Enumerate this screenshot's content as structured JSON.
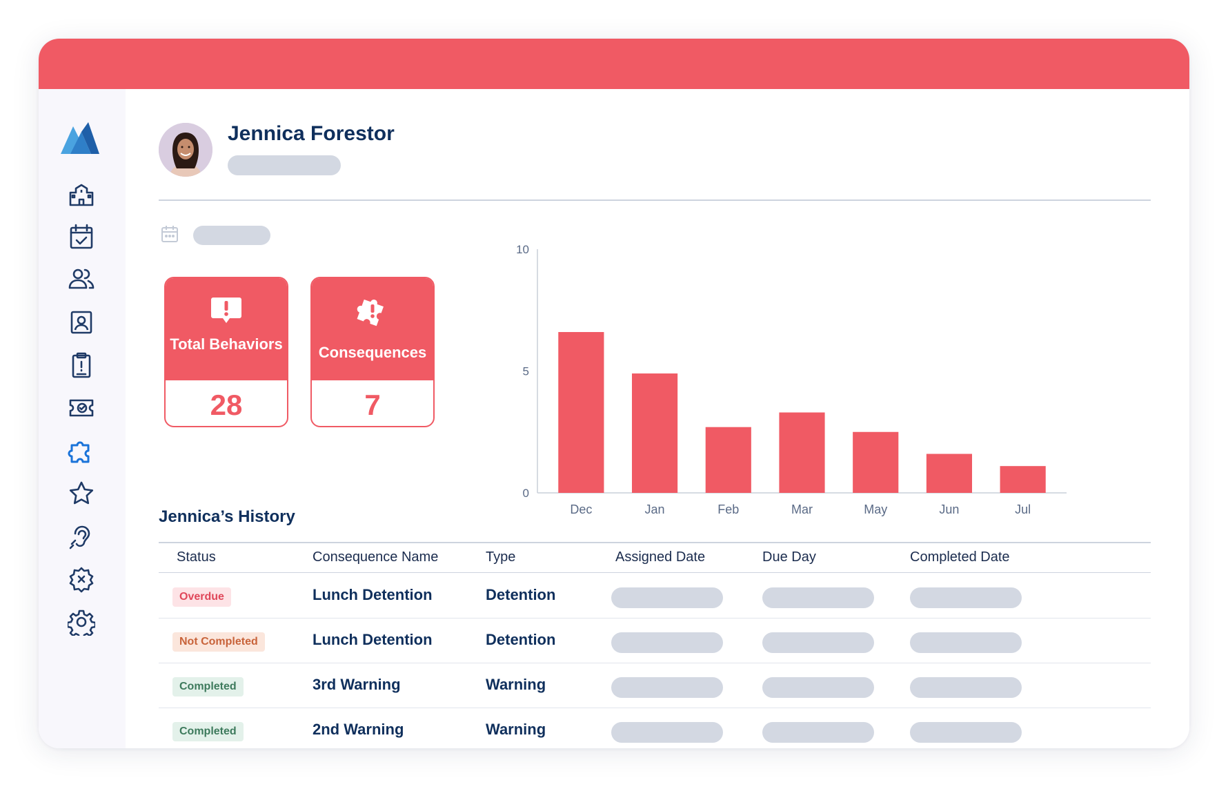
{
  "student": {
    "name": "Jennica Forestor"
  },
  "cards": [
    {
      "label": "Total Behaviors",
      "value": "28",
      "icon": "alert-bubble-icon"
    },
    {
      "label": "Consequences",
      "value": "7",
      "icon": "puzzle-alert-icon"
    }
  ],
  "nav": [
    {
      "name": "school",
      "icon": "school-icon"
    },
    {
      "name": "calendar",
      "icon": "calendar-check-icon"
    },
    {
      "name": "students",
      "icon": "users-icon"
    },
    {
      "name": "profile",
      "icon": "contact-card-icon"
    },
    {
      "name": "clipboard",
      "icon": "clipboard-icon"
    },
    {
      "name": "tickets",
      "icon": "ticket-check-icon"
    },
    {
      "name": "consequences",
      "icon": "puzzle-icon",
      "active": true
    },
    {
      "name": "rewards",
      "icon": "star-icon"
    },
    {
      "name": "listening",
      "icon": "ear-icon"
    },
    {
      "name": "interventions",
      "icon": "badge-spark-icon"
    },
    {
      "name": "settings",
      "icon": "gear-icon"
    }
  ],
  "chart_data": {
    "type": "bar",
    "categories": [
      "Dec",
      "Jan",
      "Feb",
      "Mar",
      "May",
      "Jun",
      "Jul"
    ],
    "values": [
      6.6,
      4.9,
      2.7,
      3.3,
      2.5,
      1.6,
      1.1
    ],
    "ylim": [
      0,
      10
    ],
    "yticks": [
      0,
      5,
      10
    ],
    "color": "#f05a64",
    "grid": false
  },
  "history": {
    "title": "Jennica’s History",
    "columns": [
      "Status",
      "Consequence Name",
      "Type",
      "Assigned Date",
      "Due Day",
      "Completed Date"
    ],
    "rows": [
      {
        "status": "Overdue",
        "status_kind": "overdue",
        "name": "Lunch Detention",
        "type": "Detention"
      },
      {
        "status": "Not Completed",
        "status_kind": "not-completed",
        "name": "Lunch Detention",
        "type": "Detention"
      },
      {
        "status": "Completed",
        "status_kind": "completed",
        "name": "3rd Warning",
        "type": "Warning"
      },
      {
        "status": "Completed",
        "status_kind": "completed",
        "name": "2nd Warning",
        "type": "Warning"
      }
    ]
  },
  "colors": {
    "accent": "#f05a64",
    "navy": "#0f2f5c",
    "active_nav": "#1a73d9",
    "overdue_bg": "#fde3e6",
    "overdue_fg": "#e0475a",
    "not_completed_bg": "#fbe6dc",
    "not_completed_fg": "#c8633a",
    "completed_bg": "#e3f1ea",
    "completed_fg": "#3d7a5c"
  }
}
